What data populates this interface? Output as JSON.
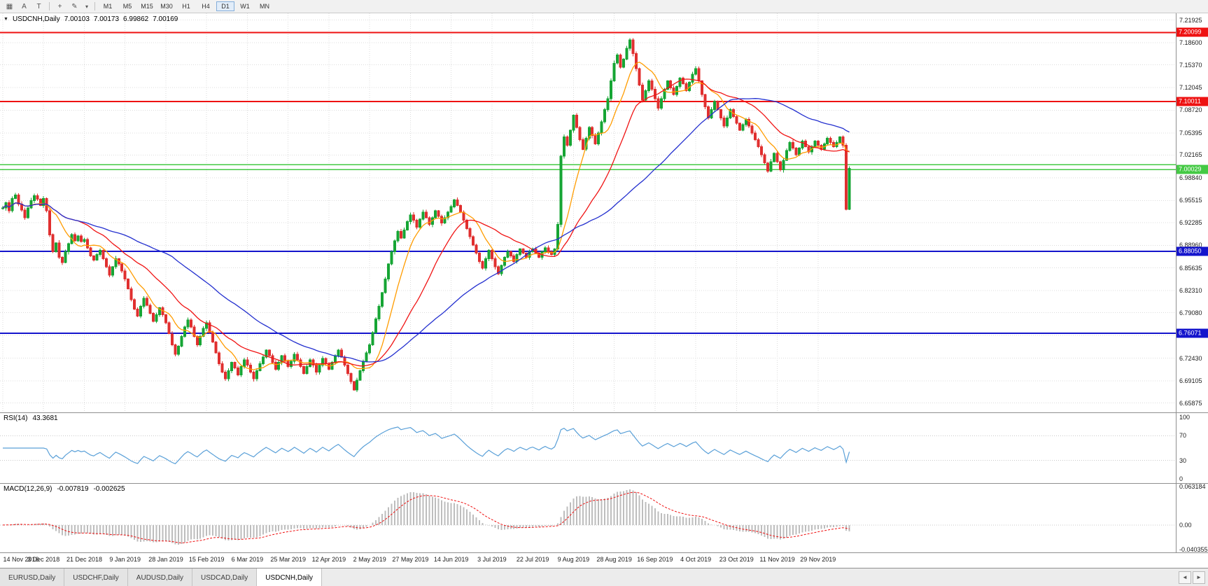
{
  "toolbar": {
    "icons": [
      {
        "name": "chart-grid-icon",
        "glyph": "▦"
      },
      {
        "name": "font-a-icon",
        "glyph": "A"
      },
      {
        "name": "text-tool-icon",
        "glyph": "T"
      },
      {
        "name": "crosshair-icon",
        "glyph": "+"
      },
      {
        "name": "draw-tools-icon",
        "glyph": "✎"
      },
      {
        "name": "dropdown-caret-icon",
        "glyph": "▾"
      }
    ],
    "timeframes": [
      "M1",
      "M5",
      "M15",
      "M30",
      "H1",
      "H4",
      "D1",
      "W1",
      "MN"
    ],
    "active_timeframe": "D1"
  },
  "chart": {
    "symbol_line": {
      "dropdown_icon": "▼",
      "symbol": "USDCNH,Daily",
      "open": "7.00103",
      "high": "7.00173",
      "low": "6.99862",
      "close": "7.00169"
    },
    "price_axis": [
      "7.21925",
      "7.18600",
      "7.15370",
      "7.12045",
      "7.08720",
      "7.05395",
      "7.02165",
      "6.98840",
      "6.95515",
      "6.92285",
      "6.88960",
      "6.85635",
      "6.82310",
      "6.79080",
      "6.75755",
      "6.72430",
      "6.69105",
      "6.65875"
    ],
    "levels": [
      {
        "price": 7.20099,
        "label": "7.20099",
        "color": "#ee1111",
        "width": 2
      },
      {
        "price": 7.10011,
        "label": "7.10011",
        "color": "#ee1111",
        "width": 2
      },
      {
        "price": 7.0075,
        "label": "",
        "color": "#44c944",
        "width": 1.5
      },
      {
        "price": 7.00029,
        "label": "7.00029",
        "color": "#44c944",
        "width": 1.5
      },
      {
        "price": 6.8805,
        "label": "6.88050",
        "color": "#1414cc",
        "width": 2
      },
      {
        "price": 6.76071,
        "label": "6.76071",
        "color": "#1414cc",
        "width": 2
      }
    ]
  },
  "chart_data": {
    "type": "candlestick",
    "symbol": "USDCNH",
    "timeframe": "Daily",
    "current_ohlc": {
      "open": 7.00103,
      "high": 7.00173,
      "low": 6.99862,
      "close": 7.00169
    },
    "y_range": {
      "top": 7.229,
      "bottom": 6.645
    },
    "x_labels": [
      "14 Nov 2018",
      "3 Dec 2018",
      "21 Dec 2018",
      "9 Jan 2019",
      "28 Jan 2019",
      "15 Feb 2019",
      "6 Mar 2019",
      "25 Mar 2019",
      "12 Apr 2019",
      "2 May 2019",
      "27 May 2019",
      "14 Jun 2019",
      "3 Jul 2019",
      "22 Jul 2019",
      "9 Aug 2019",
      "28 Aug 2019",
      "16 Sep 2019",
      "4 Oct 2019",
      "23 Oct 2019",
      "11 Nov 2019",
      "29 Nov 2019"
    ],
    "bars_per_label": 13,
    "closes": [
      6.944,
      6.952,
      6.94,
      6.958,
      6.963,
      6.95,
      6.941,
      6.93,
      6.944,
      6.955,
      6.962,
      6.957,
      6.948,
      6.958,
      6.94,
      6.905,
      6.88,
      6.893,
      6.872,
      6.864,
      6.88,
      6.892,
      6.905,
      6.896,
      6.903,
      6.895,
      6.898,
      6.886,
      6.874,
      6.868,
      6.876,
      6.882,
      6.87,
      6.858,
      6.846,
      6.858,
      6.87,
      6.862,
      6.852,
      6.84,
      6.826,
      6.81,
      6.796,
      6.786,
      6.8,
      6.812,
      6.802,
      6.79,
      6.778,
      6.788,
      6.798,
      6.788,
      6.776,
      6.76,
      6.744,
      6.73,
      6.742,
      6.756,
      6.77,
      6.78,
      6.77,
      6.756,
      6.744,
      6.756,
      6.768,
      6.776,
      6.762,
      6.748,
      6.732,
      6.716,
      6.704,
      6.694,
      6.706,
      6.718,
      6.71,
      6.7,
      6.712,
      6.722,
      6.714,
      6.704,
      6.694,
      6.706,
      6.716,
      6.726,
      6.736,
      6.728,
      6.718,
      6.708,
      6.718,
      6.728,
      6.72,
      6.712,
      6.72,
      6.73,
      6.722,
      6.712,
      6.702,
      6.712,
      6.722,
      6.714,
      6.704,
      6.714,
      6.724,
      6.716,
      6.708,
      6.718,
      6.728,
      6.736,
      6.726,
      6.714,
      6.702,
      6.69,
      6.678,
      6.692,
      6.706,
      6.72,
      6.732,
      6.744,
      6.762,
      6.782,
      6.8,
      6.82,
      6.84,
      6.862,
      6.88,
      6.896,
      6.91,
      6.9,
      6.912,
      6.924,
      6.934,
      6.926,
      6.916,
      6.928,
      6.938,
      6.93,
      6.92,
      6.93,
      6.94,
      6.932,
      6.922,
      6.93,
      6.938,
      6.946,
      6.956,
      6.948,
      6.938,
      6.926,
      6.914,
      6.902,
      6.89,
      6.878,
      6.866,
      6.856,
      6.87,
      6.882,
      6.87,
      6.858,
      6.848,
      6.86,
      6.872,
      6.88,
      6.874,
      6.866,
      6.876,
      6.884,
      6.878,
      6.872,
      6.88,
      6.884,
      6.878,
      6.872,
      6.88,
      6.886,
      6.88,
      6.876,
      6.884,
      6.92,
      7.02,
      7.048,
      7.036,
      7.058,
      7.08,
      7.062,
      7.044,
      7.03,
      7.046,
      7.062,
      7.05,
      7.038,
      7.054,
      7.07,
      7.088,
      7.104,
      7.13,
      7.156,
      7.168,
      7.15,
      7.162,
      7.178,
      7.19,
      7.17,
      7.148,
      7.124,
      7.102,
      7.116,
      7.13,
      7.118,
      7.104,
      7.09,
      7.104,
      7.118,
      7.13,
      7.12,
      7.11,
      7.122,
      7.134,
      7.126,
      7.116,
      7.128,
      7.14,
      7.148,
      7.13,
      7.11,
      7.092,
      7.076,
      7.088,
      7.1,
      7.088,
      7.076,
      7.064,
      7.076,
      7.088,
      7.078,
      7.068,
      7.058,
      7.066,
      7.074,
      7.064,
      7.054,
      7.044,
      7.034,
      7.022,
      7.01,
      6.998,
      7.012,
      7.024,
      7.012,
      7.0,
      7.014,
      7.028,
      7.04,
      7.032,
      7.022,
      7.032,
      7.042,
      7.034,
      7.026,
      7.034,
      7.042,
      7.036,
      7.03,
      7.038,
      7.046,
      7.04,
      7.034,
      7.04,
      7.048,
      7.036,
      6.942,
      7.002
    ],
    "moving_averages": [
      {
        "name": "fast-ma",
        "period": 10,
        "color": "#ff9c00"
      },
      {
        "name": "medium-ma",
        "period": 25,
        "color": "#f01414"
      },
      {
        "name": "slow-ma",
        "period": 55,
        "color": "#2430cf"
      }
    ],
    "colors": {
      "bull": "#16a534",
      "bear": "#e02f2f",
      "grid": "#dcdcdc"
    },
    "rsi": {
      "label": "RSI(14)",
      "value": "43.3681",
      "scale_labels": [
        "100",
        "70",
        "30",
        "0"
      ],
      "levels": [
        70,
        30
      ],
      "range": [
        0,
        100
      ],
      "color": "#5aa0d8"
    },
    "macd": {
      "label": "MACD(12,26,9)",
      "value_main": "-0.007819",
      "value_signal": "-0.002625",
      "scale_labels": [
        "0.063184",
        "0.00",
        "-0.040355"
      ],
      "range": [
        -0.040355,
        0.063184
      ],
      "histogram_color": "#bdbdbd",
      "signal_color": "#ef1010"
    }
  },
  "tabs": {
    "items": [
      {
        "label": "EURUSD,Daily"
      },
      {
        "label": "USDCHF,Daily"
      },
      {
        "label": "AUDUSD,Daily"
      },
      {
        "label": "USDCAD,Daily"
      },
      {
        "label": "USDCNH,Daily",
        "active": true
      }
    ],
    "scroll_left_icon": "◄",
    "scroll_right_icon": "►"
  }
}
